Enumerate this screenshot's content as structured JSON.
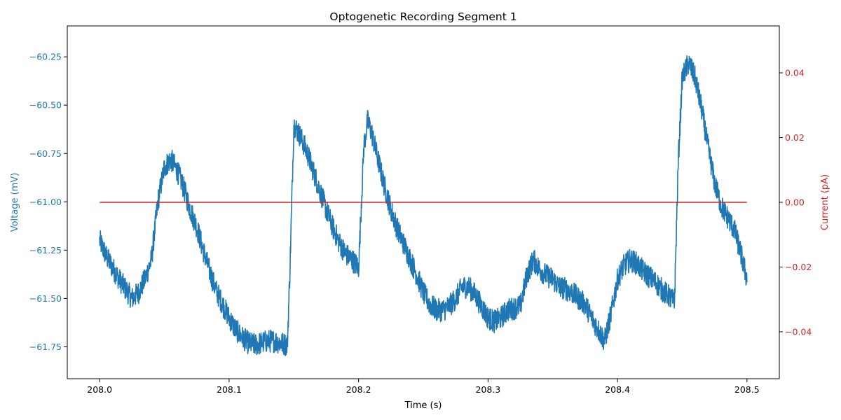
{
  "chart_data": {
    "type": "line",
    "title": "Optogenetic Recording Segment 1",
    "xlabel": "Time (s)",
    "ylabel_left": "Voltage (mV)",
    "ylabel_right": "Current (pA)",
    "xlim": [
      207.975,
      208.525
    ],
    "ylim_left": [
      -61.915,
      -60.09
    ],
    "ylim_right": [
      -0.0545,
      0.0545
    ],
    "x_ticks": [
      208.0,
      208.1,
      208.2,
      208.3,
      208.4,
      208.5
    ],
    "x_tick_labels": [
      "208.0",
      "208.1",
      "208.2",
      "208.3",
      "208.4",
      "208.5"
    ],
    "y_left_ticks": [
      -60.25,
      -60.5,
      -60.75,
      -61.0,
      -61.25,
      -61.5,
      -61.75
    ],
    "y_left_tick_labels": [
      "−60.25",
      "−60.50",
      "−60.75",
      "−61.00",
      "−61.25",
      "−61.50",
      "−61.75"
    ],
    "y_right_ticks": [
      0.04,
      0.02,
      0.0,
      -0.02,
      -0.04
    ],
    "y_right_tick_labels": [
      "0.04",
      "0.02",
      "0.00",
      "−0.02",
      "−0.04"
    ],
    "grid": false,
    "series": [
      {
        "axis": "left",
        "color": "#1f77b4",
        "x": [
          208.0,
          208.005,
          208.01,
          208.015,
          208.02,
          208.025,
          208.03,
          208.035,
          208.04,
          208.045,
          208.05,
          208.055,
          208.06,
          208.065,
          208.07,
          208.075,
          208.08,
          208.085,
          208.09,
          208.095,
          208.1,
          208.105,
          208.11,
          208.115,
          208.12,
          208.125,
          208.13,
          208.135,
          208.14,
          208.145,
          208.147,
          208.15,
          208.155,
          208.16,
          208.165,
          208.17,
          208.175,
          208.18,
          208.185,
          208.19,
          208.195,
          208.2,
          208.204,
          208.207,
          208.21,
          208.215,
          208.22,
          208.225,
          208.23,
          208.235,
          208.24,
          208.245,
          208.25,
          208.255,
          208.26,
          208.265,
          208.27,
          208.275,
          208.28,
          208.285,
          208.29,
          208.295,
          208.3,
          208.305,
          208.31,
          208.315,
          208.32,
          208.325,
          208.33,
          208.335,
          208.34,
          208.345,
          208.35,
          208.355,
          208.36,
          208.365,
          208.37,
          208.375,
          208.38,
          208.385,
          208.39,
          208.395,
          208.4,
          208.405,
          208.41,
          208.415,
          208.42,
          208.425,
          208.43,
          208.435,
          208.44,
          208.444,
          208.447,
          208.45,
          208.455,
          208.46,
          208.465,
          208.47,
          208.475,
          208.48,
          208.485,
          208.49,
          208.495,
          208.5
        ],
        "y": [
          -61.2,
          -61.28,
          -61.34,
          -61.4,
          -61.45,
          -61.5,
          -61.47,
          -61.4,
          -61.3,
          -61.0,
          -60.82,
          -60.78,
          -60.84,
          -60.93,
          -61.04,
          -61.13,
          -61.25,
          -61.36,
          -61.46,
          -61.53,
          -61.6,
          -61.66,
          -61.7,
          -61.73,
          -61.74,
          -61.73,
          -61.72,
          -61.72,
          -61.73,
          -61.74,
          -61.35,
          -60.6,
          -60.66,
          -60.74,
          -60.84,
          -60.94,
          -61.04,
          -61.13,
          -61.21,
          -61.27,
          -61.3,
          -61.34,
          -60.72,
          -60.58,
          -60.64,
          -60.78,
          -60.92,
          -61.04,
          -61.14,
          -61.22,
          -61.3,
          -61.38,
          -61.47,
          -61.53,
          -61.56,
          -61.56,
          -61.54,
          -61.5,
          -61.44,
          -61.44,
          -61.48,
          -61.54,
          -61.6,
          -61.62,
          -61.6,
          -61.56,
          -61.55,
          -61.54,
          -61.38,
          -61.3,
          -61.35,
          -61.38,
          -61.4,
          -61.44,
          -61.45,
          -61.47,
          -61.5,
          -61.53,
          -61.6,
          -61.66,
          -61.72,
          -61.58,
          -61.4,
          -61.33,
          -61.3,
          -61.32,
          -61.36,
          -61.39,
          -61.42,
          -61.46,
          -61.49,
          -61.52,
          -60.78,
          -60.36,
          -60.28,
          -60.36,
          -60.52,
          -60.72,
          -60.9,
          -61.02,
          -61.08,
          -61.14,
          -61.26,
          -61.4
        ],
        "noise_mV": 0.06
      },
      {
        "axis": "right",
        "color": "#d62728",
        "x": [
          208.0,
          208.5
        ],
        "y": [
          0.0,
          0.0
        ]
      }
    ]
  }
}
